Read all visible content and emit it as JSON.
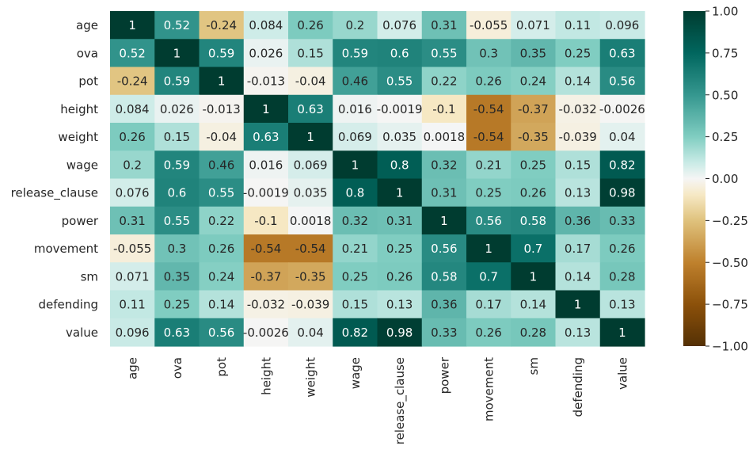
{
  "chart_data": {
    "type": "heatmap",
    "title": "",
    "row_labels": [
      "age",
      "ova",
      "pot",
      "height",
      "weight",
      "wage",
      "release_clause",
      "power",
      "movement",
      "sm",
      "defending",
      "value"
    ],
    "col_labels": [
      "age",
      "ova",
      "pot",
      "height",
      "weight",
      "wage",
      "release_clause",
      "power",
      "movement",
      "sm",
      "defending",
      "value"
    ],
    "values": [
      [
        1,
        0.52,
        -0.24,
        0.084,
        0.26,
        0.2,
        0.076,
        0.31,
        -0.055,
        0.071,
        0.11,
        0.096
      ],
      [
        0.52,
        1,
        0.59,
        0.026,
        0.15,
        0.59,
        0.6,
        0.55,
        0.3,
        0.35,
        0.25,
        0.63
      ],
      [
        -0.24,
        0.59,
        1,
        -0.013,
        -0.04,
        0.46,
        0.55,
        0.22,
        0.26,
        0.24,
        0.14,
        0.56
      ],
      [
        0.084,
        0.026,
        -0.013,
        1,
        0.63,
        0.016,
        -0.0019,
        -0.1,
        -0.54,
        -0.37,
        -0.032,
        -0.0026
      ],
      [
        0.26,
        0.15,
        -0.04,
        0.63,
        1,
        0.069,
        0.035,
        0.0018,
        -0.54,
        -0.35,
        -0.039,
        0.04
      ],
      [
        0.2,
        0.59,
        0.46,
        0.016,
        0.069,
        1,
        0.8,
        0.32,
        0.21,
        0.25,
        0.15,
        0.82
      ],
      [
        0.076,
        0.6,
        0.55,
        -0.0019,
        0.035,
        0.8,
        1,
        0.31,
        0.25,
        0.26,
        0.13,
        0.98
      ],
      [
        0.31,
        0.55,
        0.22,
        -0.1,
        0.0018,
        0.32,
        0.31,
        1,
        0.56,
        0.58,
        0.36,
        0.33
      ],
      [
        -0.055,
        0.3,
        0.26,
        -0.54,
        -0.54,
        0.21,
        0.25,
        0.56,
        1,
        0.7,
        0.17,
        0.26
      ],
      [
        0.071,
        0.35,
        0.24,
        -0.37,
        -0.35,
        0.25,
        0.26,
        0.58,
        0.7,
        1,
        0.14,
        0.28
      ],
      [
        0.11,
        0.25,
        0.14,
        -0.032,
        -0.039,
        0.15,
        0.13,
        0.36,
        0.17,
        0.14,
        1,
        0.13
      ],
      [
        0.096,
        0.63,
        0.56,
        -0.0026,
        0.04,
        0.82,
        0.98,
        0.33,
        0.26,
        0.28,
        0.13,
        1
      ]
    ],
    "labels": [
      [
        "1",
        "0.52",
        "-0.24",
        "0.084",
        "0.26",
        "0.2",
        "0.076",
        "0.31",
        "-0.055",
        "0.071",
        "0.11",
        "0.096"
      ],
      [
        "0.52",
        "1",
        "0.59",
        "0.026",
        "0.15",
        "0.59",
        "0.6",
        "0.55",
        "0.3",
        "0.35",
        "0.25",
        "0.63"
      ],
      [
        "-0.24",
        "0.59",
        "1",
        "-0.013",
        "-0.04",
        "0.46",
        "0.55",
        "0.22",
        "0.26",
        "0.24",
        "0.14",
        "0.56"
      ],
      [
        "0.084",
        "0.026",
        "-0.013",
        "1",
        "0.63",
        "0.016",
        "-0.0019",
        "-0.1",
        "-0.54",
        "-0.37",
        "-0.032",
        "-0.0026"
      ],
      [
        "0.26",
        "0.15",
        "-0.04",
        "0.63",
        "1",
        "0.069",
        "0.035",
        "0.0018",
        "-0.54",
        "-0.35",
        "-0.039",
        "0.04"
      ],
      [
        "0.2",
        "0.59",
        "0.46",
        "0.016",
        "0.069",
        "1",
        "0.8",
        "0.32",
        "0.21",
        "0.25",
        "0.15",
        "0.82"
      ],
      [
        "0.076",
        "0.6",
        "0.55",
        "-0.0019",
        "0.035",
        "0.8",
        "1",
        "0.31",
        "0.25",
        "0.26",
        "0.13",
        "0.98"
      ],
      [
        "0.31",
        "0.55",
        "0.22",
        "-0.1",
        "0.0018",
        "0.32",
        "0.31",
        "1",
        "0.56",
        "0.58",
        "0.36",
        "0.33"
      ],
      [
        "-0.055",
        "0.3",
        "0.26",
        "-0.54",
        "-0.54",
        "0.21",
        "0.25",
        "0.56",
        "1",
        "0.7",
        "0.17",
        "0.26"
      ],
      [
        "0.071",
        "0.35",
        "0.24",
        "-0.37",
        "-0.35",
        "0.25",
        "0.26",
        "0.58",
        "0.7",
        "1",
        "0.14",
        "0.28"
      ],
      [
        "0.11",
        "0.25",
        "0.14",
        "-0.032",
        "-0.039",
        "0.15",
        "0.13",
        "0.36",
        "0.17",
        "0.14",
        "1",
        "0.13"
      ],
      [
        "0.096",
        "0.63",
        "0.56",
        "-0.0026",
        "0.04",
        "0.82",
        "0.98",
        "0.33",
        "0.26",
        "0.28",
        "0.13",
        "1"
      ]
    ],
    "colormap": "BrBG",
    "vmin": -1,
    "vmax": 1,
    "colorbar_ticks": [
      1,
      0.75,
      0.5,
      0.25,
      0,
      -0.25,
      -0.5,
      -0.75,
      -1
    ],
    "colorbar_tick_labels": [
      "1.00",
      "0.75",
      "0.50",
      "0.25",
      "0.00",
      "−0.25",
      "−0.50",
      "−0.75",
      "−1.00"
    ],
    "legend": "right"
  }
}
